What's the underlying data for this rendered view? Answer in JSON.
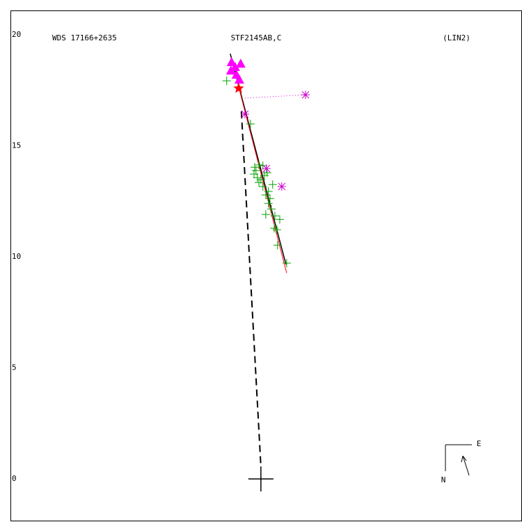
{
  "chart_data": {
    "type": "scatter",
    "title": "STF2145AB,C",
    "wds_id": "WDS 17166+2635",
    "orbit_ref": "(LIN2)",
    "compass": {
      "east": "E",
      "north": "N"
    },
    "xlim": [
      -11.28,
      11.76
    ],
    "ylim": [
      -1.94,
      21.1
    ],
    "yticks": [
      0,
      5,
      10,
      15,
      20
    ],
    "series": [
      {
        "marker": "line",
        "color": "#000000",
        "x": [
          -1.38,
          1.13
        ],
        "y": [
          19.15,
          9.66
        ]
      },
      {
        "marker": "line",
        "color": "#ff0000",
        "x": [
          -1.0,
          1.16
        ],
        "y": [
          17.65,
          9.28
        ]
      },
      {
        "marker": "dashed",
        "color": "#000000",
        "x": [
          -0.88,
          0.0
        ],
        "y": [
          16.55,
          0.56
        ]
      },
      {
        "marker": "dotted",
        "color": "#cc00cc",
        "x": [
          -0.72,
          2.01
        ],
        "y": [
          17.15,
          17.3
        ]
      },
      {
        "marker": "plus",
        "color": "#00a000",
        "x": [
          -1.54,
          -0.47,
          -0.28,
          -0.09,
          0.09,
          -0.22,
          -0.31,
          -0.16,
          0,
          0.16,
          0.28,
          -0.09,
          0.09,
          0.34,
          0.22,
          0.41,
          0.53,
          0.34,
          0.47,
          0.22,
          0.63,
          0.85,
          0.6,
          0.72,
          0.75,
          1.16
        ],
        "y": [
          17.93,
          15.99,
          14.04,
          14.14,
          14.11,
          13.89,
          13.73,
          13.57,
          13.48,
          13.67,
          13.79,
          13.35,
          13.17,
          12.95,
          12.79,
          12.63,
          13.26,
          12.41,
          12.16,
          11.91,
          11.85,
          11.69,
          11.29,
          11.22,
          10.53,
          9.72
        ]
      },
      {
        "marker": "triangle",
        "color": "#ff00ff",
        "x": [
          -1.32,
          -1.16,
          -0.91,
          -1.35,
          -1.1,
          -0.97
        ],
        "y": [
          18.75,
          18.53,
          18.68,
          18.37,
          18.18,
          17.96
        ]
      },
      {
        "marker": "asterisk",
        "color": "#cc00cc",
        "x": [
          2.01,
          -0.72,
          0.94,
          0.25
        ],
        "y": [
          17.3,
          16.43,
          13.17,
          13.98
        ]
      },
      {
        "marker": "star",
        "color": "#ff0000",
        "x": [
          -1.0
        ],
        "y": [
          17.59
        ]
      }
    ]
  }
}
